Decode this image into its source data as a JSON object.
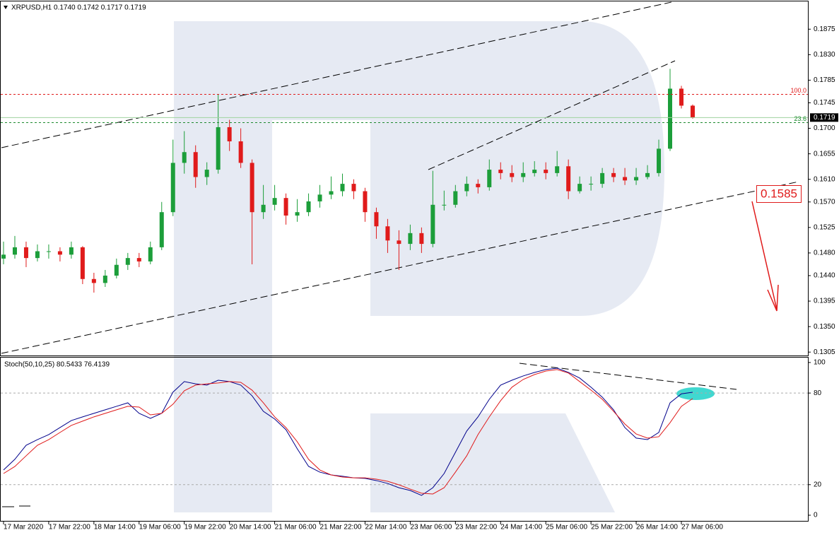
{
  "chart_data": [
    {
      "type": "candlestick",
      "header": "XRPUSD,H1  0.1740 0.1742 0.1717 0.1719",
      "colors": {
        "up": "#1c9e3a",
        "down": "#e01b1b"
      },
      "open": [
        0.147,
        0.1477,
        0.149,
        0.1471,
        0.1483,
        0.1483,
        0.1477,
        0.149,
        0.1434,
        0.1427,
        0.144,
        0.1459,
        0.1471,
        0.1465,
        0.149,
        0.1552,
        0.1639,
        0.1658,
        0.1614,
        0.1627,
        0.1702,
        0.1677,
        0.1639,
        0.1552,
        0.1565,
        0.1577,
        0.1546,
        0.1552,
        0.1571,
        0.1583,
        0.1589,
        0.1602,
        0.1589,
        0.1552,
        0.1527,
        0.1502,
        0.1496,
        0.1515,
        0.1496,
        0.1565,
        0.1565,
        0.1589,
        0.1602,
        0.1596,
        0.1627,
        0.1621,
        0.1614,
        0.1621,
        0.1627,
        0.1621,
        0.1633,
        0.1589,
        0.1602,
        0.1602,
        0.1621,
        0.1614,
        0.1608,
        0.1614,
        0.1621,
        0.1664,
        0.177,
        0.174
      ],
      "high": [
        0.15,
        0.151,
        0.15,
        0.1495,
        0.1495,
        0.149,
        0.15,
        0.1492,
        0.1445,
        0.145,
        0.147,
        0.148,
        0.148,
        0.15,
        0.157,
        0.168,
        0.1695,
        0.167,
        0.164,
        0.176,
        0.1715,
        0.17,
        0.1645,
        0.16,
        0.16,
        0.1585,
        0.1575,
        0.1585,
        0.16,
        0.1615,
        0.162,
        0.161,
        0.1595,
        0.156,
        0.154,
        0.152,
        0.153,
        0.1525,
        0.1625,
        0.159,
        0.16,
        0.1615,
        0.161,
        0.1645,
        0.164,
        0.1635,
        0.164,
        0.1642,
        0.164,
        0.166,
        0.1645,
        0.1615,
        0.1615,
        0.163,
        0.163,
        0.163,
        0.163,
        0.1635,
        0.168,
        0.1805,
        0.1775,
        0.1742
      ],
      "low": [
        0.146,
        0.147,
        0.1455,
        0.1465,
        0.147,
        0.1465,
        0.147,
        0.1425,
        0.141,
        0.142,
        0.1435,
        0.145,
        0.1455,
        0.146,
        0.1485,
        0.1545,
        0.162,
        0.1595,
        0.16,
        0.162,
        0.166,
        0.163,
        0.146,
        0.154,
        0.1555,
        0.153,
        0.1535,
        0.1545,
        0.156,
        0.1575,
        0.158,
        0.1575,
        0.1535,
        0.1505,
        0.148,
        0.145,
        0.1485,
        0.148,
        0.149,
        0.1555,
        0.156,
        0.158,
        0.1585,
        0.159,
        0.161,
        0.1605,
        0.1605,
        0.1615,
        0.161,
        0.1615,
        0.1575,
        0.1585,
        0.159,
        0.1595,
        0.1605,
        0.16,
        0.16,
        0.161,
        0.1615,
        0.166,
        0.1735,
        0.1717
      ],
      "close": [
        0.1477,
        0.149,
        0.1471,
        0.1483,
        0.1483,
        0.1477,
        0.149,
        0.1434,
        0.1427,
        0.144,
        0.1459,
        0.1471,
        0.1465,
        0.149,
        0.1552,
        0.1639,
        0.1658,
        0.1614,
        0.1627,
        0.1702,
        0.1677,
        0.1639,
        0.1552,
        0.1565,
        0.1577,
        0.1546,
        0.1552,
        0.1571,
        0.1583,
        0.1589,
        0.1602,
        0.1589,
        0.1552,
        0.1527,
        0.1502,
        0.1496,
        0.1515,
        0.1496,
        0.1565,
        0.1565,
        0.1589,
        0.1602,
        0.1596,
        0.1627,
        0.1621,
        0.1614,
        0.1621,
        0.1627,
        0.1621,
        0.1633,
        0.1589,
        0.1602,
        0.1602,
        0.1621,
        0.1614,
        0.1608,
        0.1614,
        0.1621,
        0.1664,
        0.177,
        0.174,
        0.1719
      ],
      "ylim": [
        0.1299,
        0.1924
      ],
      "yticks": [
        {
          "value": 0.1875,
          "label": "0.1875"
        },
        {
          "value": 0.183,
          "label": "0.1830"
        },
        {
          "value": 0.1785,
          "label": "0.1785"
        },
        {
          "value": 0.1745,
          "label": "0.1745"
        },
        {
          "value": 0.17,
          "label": "0.1700"
        },
        {
          "value": 0.1655,
          "label": "0.1655"
        },
        {
          "value": 0.161,
          "label": "0.1610"
        },
        {
          "value": 0.157,
          "label": "0.1570"
        },
        {
          "value": 0.1525,
          "label": "0.1525"
        },
        {
          "value": 0.148,
          "label": "0.1480"
        },
        {
          "value": 0.144,
          "label": "0.1440"
        },
        {
          "value": 0.1395,
          "label": "0.1395"
        },
        {
          "value": 0.135,
          "label": "0.1350"
        },
        {
          "value": 0.1305,
          "label": "0.1305"
        }
      ],
      "xlim": [
        -0.25,
        71.2
      ],
      "xticks": [
        {
          "value": 0,
          "label": "17 Mar 2020"
        },
        {
          "value": 4,
          "label": "17 Mar 22:00"
        },
        {
          "value": 8,
          "label": "18 Mar 14:00"
        },
        {
          "value": 12,
          "label": "19 Mar 06:00"
        },
        {
          "value": 16,
          "label": "19 Mar 22:00"
        },
        {
          "value": 20,
          "label": "20 Mar 14:00"
        },
        {
          "value": 24,
          "label": "21 Mar 06:00"
        },
        {
          "value": 28,
          "label": "21 Mar 22:00"
        },
        {
          "value": 32,
          "label": "22 Mar 14:00"
        },
        {
          "value": 36,
          "label": "23 Mar 06:00"
        },
        {
          "value": 40,
          "label": "23 Mar 22:00"
        },
        {
          "value": 44,
          "label": "24 Mar 14:00"
        },
        {
          "value": 48,
          "label": "25 Mar 06:00"
        },
        {
          "value": 52,
          "label": "25 Mar 22:00"
        },
        {
          "value": 56,
          "label": "26 Mar 14:00"
        },
        {
          "value": 60,
          "label": "27 Mar 06:00"
        }
      ],
      "current_price": {
        "value": 0.1719,
        "label": "0.1719"
      },
      "levels": [
        {
          "name": "100.0",
          "value": 0.176,
          "color": "#e01b1b"
        },
        {
          "name": "23.6",
          "value": 0.171,
          "color": "#1c8a2e"
        }
      ],
      "annotation": "0.1585"
    },
    {
      "type": "line",
      "header": "Stoch(50,10,25) 80.5433 76.4139",
      "series": [
        {
          "color": "#00008b",
          "values": [
            29.6,
            36.6,
            45.8,
            49.5,
            52.8,
            57.4,
            62,
            64.4,
            66.7,
            69,
            71.3,
            73.6,
            66.7,
            63.4,
            66.7,
            80.6,
            87.5,
            86,
            85.2,
            88.4,
            87.5,
            85.2,
            78.2,
            68,
            63,
            56,
            43.5,
            32,
            28.2,
            26.4,
            25.5,
            24.5,
            24.1,
            22.7,
            20.8,
            18,
            16.2,
            13,
            18,
            27.3,
            41.2,
            55.1,
            64.4,
            75.9,
            85.2,
            88.4,
            91.2,
            93.5,
            95.4,
            96.3,
            93.5,
            89.8,
            83.8,
            77.3,
            69,
            57.4,
            50.5,
            49.5,
            54.2,
            73.6,
            79.5,
            80.5433
          ]
        },
        {
          "color": "#e01b1b",
          "values": [
            27.3,
            31.9,
            38.9,
            45.8,
            49.5,
            54.2,
            58.8,
            61.6,
            64.4,
            66.7,
            69,
            71.3,
            70.8,
            65.7,
            66.7,
            72.7,
            81.5,
            85.2,
            86,
            86.6,
            87.5,
            87,
            81.9,
            73.6,
            64.4,
            57.4,
            48.1,
            36.6,
            29.6,
            26.4,
            25,
            24.5,
            24.5,
            23.6,
            22.2,
            19.9,
            17.1,
            14.4,
            13.9,
            18,
            28.2,
            38.9,
            52.8,
            64.4,
            75,
            83.8,
            88.9,
            92.1,
            94.4,
            95.4,
            93.1,
            87.5,
            81.9,
            75.9,
            68,
            59.7,
            53.2,
            50.5,
            51.4,
            60.6,
            71.3,
            76.4139
          ]
        }
      ],
      "ylim": [
        -3.7,
        103.2
      ],
      "yticks": [
        100,
        80,
        20,
        0
      ],
      "dashed_levels": [
        80,
        20
      ]
    }
  ]
}
